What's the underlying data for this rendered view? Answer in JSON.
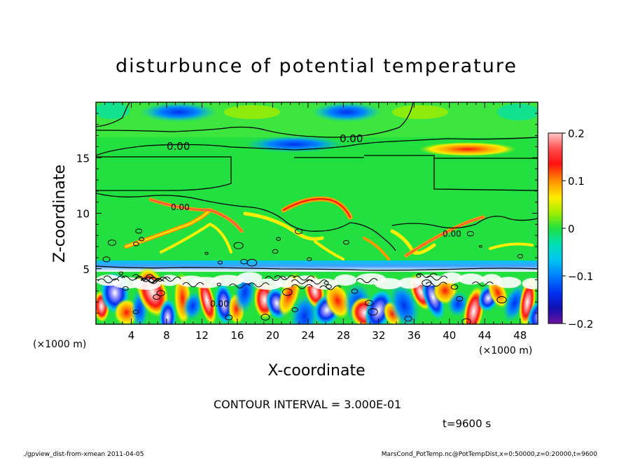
{
  "chart_data": {
    "type": "heatmap",
    "title": "disturbunce of potential temperature",
    "xlabel": "X-coordinate",
    "ylabel": "Z-coordinate",
    "x_units_left": "(×1000 m)",
    "x_units_right": "(×1000 m)",
    "xlim": [
      0,
      50
    ],
    "ylim": [
      0,
      20
    ],
    "xticks": [
      "4",
      "8",
      "12",
      "16",
      "20",
      "24",
      "28",
      "32",
      "36",
      "40",
      "44",
      "48"
    ],
    "yticks": [
      "5",
      "10",
      "15"
    ],
    "contour_labels": [
      "0.00",
      "0.00",
      "0.00",
      "0.00",
      "0.00"
    ],
    "colorbar": {
      "ticks": [
        "0.2",
        "0.1",
        "0",
        "−0.1",
        "−0.2"
      ],
      "range": [
        -0.2,
        0.2
      ]
    },
    "contour_interval": "CONTOUR INTERVAL = 3.000E-01",
    "time": "t=9600 s"
  },
  "footer": {
    "left": "./gpview_dist-from-xmean  2011-04-05",
    "right": "MarsCond_PotTemp.nc@PotTempDist,x=0:50000,z=0:20000,t=9600"
  },
  "colors": {
    "background_field": "#22e040",
    "contour": "#000000"
  }
}
